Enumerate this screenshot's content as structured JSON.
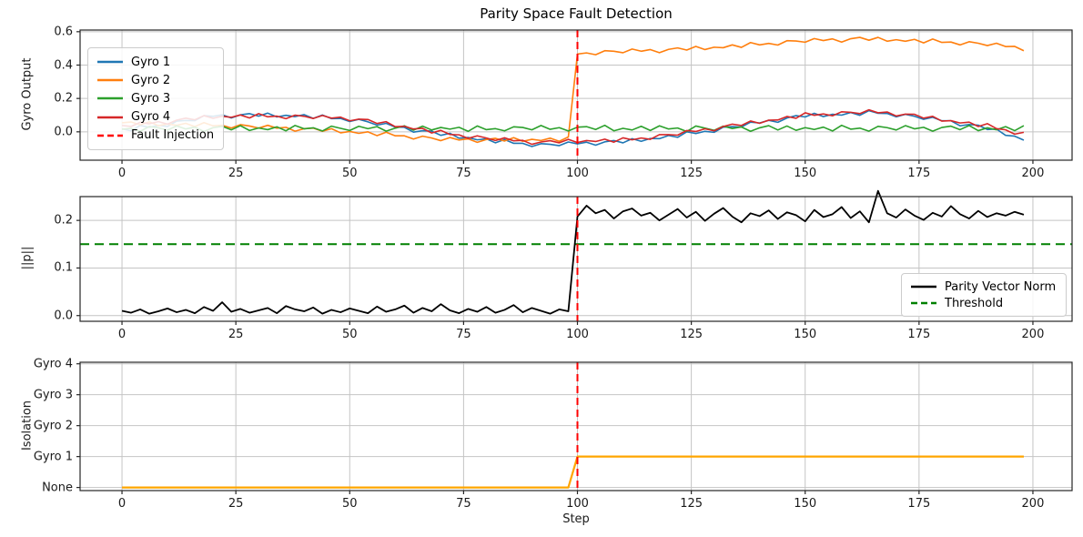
{
  "figure": {
    "title": "Parity Space Fault Detection",
    "background": "#ffffff",
    "grid_color": "#c4c4c4",
    "spine_color": "#262626"
  },
  "chart_data": [
    {
      "type": "line",
      "title": "Parity Space Fault Detection",
      "ylabel": "Gyro Output",
      "xlim": [
        -9.2,
        208.6
      ],
      "ylim": [
        -0.17,
        0.61
      ],
      "xticks": [
        0,
        25,
        50,
        75,
        100,
        125,
        150,
        175,
        200
      ],
      "xticklabels": [
        "0",
        "25",
        "50",
        "75",
        "100",
        "125",
        "150",
        "175",
        "200"
      ],
      "yticks": [
        0.0,
        0.2,
        0.4,
        0.6
      ],
      "yticklabels": [
        "0.0",
        "0.2",
        "0.4",
        "0.6"
      ],
      "grid": true,
      "x": {
        "start": 0,
        "step": 2,
        "count": 100
      },
      "vline": {
        "x": 100,
        "color": "#ff0000",
        "label": "Fault Injection",
        "style": "dashed"
      },
      "legend": {
        "position": "upper-left",
        "entries": [
          {
            "label": "Gyro 1",
            "color": "#1f77b4",
            "dash": false
          },
          {
            "label": "Gyro 2",
            "color": "#ff7f0e",
            "dash": false
          },
          {
            "label": "Gyro 3",
            "color": "#2ca02c",
            "dash": false
          },
          {
            "label": "Gyro 4",
            "color": "#d62728",
            "dash": false
          },
          {
            "label": "Fault Injection",
            "color": "#ff0000",
            "dash": true
          }
        ]
      },
      "series": [
        {
          "name": "Gyro 1",
          "color": "#1f77b4",
          "width": 1.6,
          "values": [
            0.018,
            0.006,
            0.038,
            0.027,
            0.039,
            0.032,
            0.064,
            0.068,
            0.067,
            0.097,
            0.093,
            0.102,
            0.083,
            0.102,
            0.109,
            0.094,
            0.112,
            0.089,
            0.099,
            0.091,
            0.103,
            0.08,
            0.101,
            0.079,
            0.08,
            0.062,
            0.075,
            0.06,
            0.04,
            0.051,
            0.028,
            0.027,
            -0.002,
            0.007,
            0.004,
            -0.021,
            -0.009,
            -0.038,
            -0.034,
            -0.048,
            -0.042,
            -0.066,
            -0.046,
            -0.069,
            -0.069,
            -0.088,
            -0.071,
            -0.075,
            -0.083,
            -0.061,
            -0.072,
            -0.062,
            -0.08,
            -0.06,
            -0.052,
            -0.066,
            -0.041,
            -0.057,
            -0.04,
            -0.041,
            -0.022,
            -0.033,
            0.0,
            -0.01,
            0.003,
            -0.003,
            0.028,
            0.031,
            0.029,
            0.058,
            0.053,
            0.069,
            0.057,
            0.083,
            0.097,
            0.089,
            0.111,
            0.091,
            0.105,
            0.1,
            0.116,
            0.099,
            0.127,
            0.111,
            0.11,
            0.09,
            0.105,
            0.093,
            0.075,
            0.087,
            0.066,
            0.066,
            0.036,
            0.044,
            0.04,
            0.014,
            0.017,
            -0.021,
            -0.026,
            -0.05
          ]
        },
        {
          "name": "Gyro 2",
          "color": "#ff7f0e",
          "width": 1.6,
          "values": [
            0.054,
            0.059,
            0.042,
            0.06,
            0.037,
            0.047,
            0.039,
            0.051,
            0.031,
            0.055,
            0.036,
            0.039,
            0.023,
            0.043,
            0.035,
            0.022,
            0.039,
            0.022,
            0.027,
            0.004,
            0.019,
            0.022,
            0.003,
            0.019,
            -0.006,
            0.002,
            -0.009,
            0.0,
            -0.023,
            -0.002,
            -0.024,
            -0.024,
            -0.043,
            -0.026,
            -0.037,
            -0.053,
            -0.034,
            -0.049,
            -0.042,
            -0.063,
            -0.046,
            -0.039,
            -0.055,
            -0.035,
            -0.057,
            -0.045,
            -0.052,
            -0.038,
            -0.057,
            -0.031,
            0.466,
            0.473,
            0.462,
            0.486,
            0.483,
            0.474,
            0.496,
            0.483,
            0.493,
            0.474,
            0.494,
            0.503,
            0.49,
            0.512,
            0.493,
            0.507,
            0.504,
            0.521,
            0.506,
            0.535,
            0.521,
            0.53,
            0.52,
            0.546,
            0.544,
            0.537,
            0.559,
            0.547,
            0.557,
            0.538,
            0.558,
            0.566,
            0.549,
            0.566,
            0.543,
            0.552,
            0.543,
            0.554,
            0.533,
            0.556,
            0.536,
            0.538,
            0.521,
            0.54,
            0.531,
            0.517,
            0.531,
            0.511,
            0.512,
            0.486
          ]
        },
        {
          "name": "Gyro 3",
          "color": "#2ca02c",
          "width": 1.6,
          "values": [
            0.015,
            0.021,
            0.003,
            0.032,
            0.024,
            0.01,
            0.036,
            0.017,
            0.028,
            0.002,
            0.025,
            0.033,
            0.012,
            0.037,
            0.008,
            0.023,
            0.013,
            0.03,
            0.006,
            0.038,
            0.018,
            0.024,
            0.005,
            0.034,
            0.021,
            0.008,
            0.033,
            0.019,
            0.031,
            0.004,
            0.022,
            0.036,
            0.01,
            0.034,
            0.011,
            0.026,
            0.016,
            0.027,
            0.003,
            0.035,
            0.013,
            0.019,
            0.006,
            0.03,
            0.026,
            0.012,
            0.038,
            0.015,
            0.025,
            0.005,
            0.028,
            0.031,
            0.014,
            0.039,
            0.006,
            0.021,
            0.011,
            0.033,
            0.008,
            0.036,
            0.017,
            0.023,
            0.002,
            0.035,
            0.022,
            0.009,
            0.034,
            0.02,
            0.029,
            0.003,
            0.024,
            0.037,
            0.011,
            0.035,
            0.009,
            0.025,
            0.014,
            0.028,
            0.005,
            0.039,
            0.016,
            0.022,
            0.004,
            0.033,
            0.025,
            0.011,
            0.037,
            0.018,
            0.027,
            0.004,
            0.026,
            0.034,
            0.013,
            0.038,
            0.007,
            0.024,
            0.012,
            0.031,
            0.007,
            0.037
          ]
        },
        {
          "name": "Gyro 4",
          "color": "#d62728",
          "width": 1.6,
          "values": [
            0.038,
            0.032,
            0.057,
            0.048,
            0.061,
            0.046,
            0.07,
            0.082,
            0.072,
            0.097,
            0.081,
            0.093,
            0.087,
            0.101,
            0.083,
            0.109,
            0.09,
            0.094,
            0.079,
            0.1,
            0.093,
            0.08,
            0.098,
            0.082,
            0.088,
            0.066,
            0.076,
            0.074,
            0.05,
            0.061,
            0.031,
            0.033,
            0.017,
            0.021,
            -0.007,
            0.009,
            -0.016,
            -0.018,
            -0.039,
            -0.024,
            -0.037,
            -0.052,
            -0.036,
            -0.054,
            -0.051,
            -0.075,
            -0.061,
            -0.053,
            -0.066,
            -0.045,
            -0.064,
            -0.052,
            -0.058,
            -0.044,
            -0.062,
            -0.036,
            -0.048,
            -0.037,
            -0.045,
            -0.017,
            -0.017,
            -0.02,
            0.008,
            0.002,
            0.018,
            0.006,
            0.032,
            0.046,
            0.038,
            0.065,
            0.051,
            0.07,
            0.071,
            0.092,
            0.081,
            0.114,
            0.099,
            0.107,
            0.096,
            0.12,
            0.117,
            0.109,
            0.132,
            0.114,
            0.119,
            0.095,
            0.106,
            0.105,
            0.082,
            0.093,
            0.064,
            0.067,
            0.053,
            0.058,
            0.032,
            0.049,
            0.019,
            0.012,
            -0.014,
            -0.003
          ]
        }
      ]
    },
    {
      "type": "line",
      "ylabel": "||p||",
      "xlim": [
        -9.2,
        208.6
      ],
      "ylim": [
        -0.012,
        0.25
      ],
      "xticks": [
        0,
        25,
        50,
        75,
        100,
        125,
        150,
        175,
        200
      ],
      "xticklabels": [
        "0",
        "25",
        "50",
        "75",
        "100",
        "125",
        "150",
        "175",
        "200"
      ],
      "yticks": [
        0.0,
        0.1,
        0.2
      ],
      "yticklabels": [
        "0.0",
        "0.1",
        "0.2"
      ],
      "grid": true,
      "x": {
        "start": 0,
        "step": 2,
        "count": 100
      },
      "vline": {
        "x": 100,
        "color": "#ff0000",
        "style": "dashed"
      },
      "hline": {
        "y": 0.15,
        "color": "#008000",
        "label": "Threshold",
        "style": "dashed"
      },
      "legend": {
        "position": "lower-right",
        "entries": [
          {
            "label": "Parity Vector Norm",
            "color": "#000000",
            "dash": false
          },
          {
            "label": "Threshold",
            "color": "#008000",
            "dash": true
          }
        ]
      },
      "series": [
        {
          "name": "Parity Vector Norm",
          "color": "#000000",
          "width": 1.8,
          "values": [
            0.01,
            0.006,
            0.013,
            0.004,
            0.009,
            0.015,
            0.007,
            0.012,
            0.005,
            0.018,
            0.01,
            0.028,
            0.008,
            0.014,
            0.006,
            0.011,
            0.016,
            0.005,
            0.02,
            0.013,
            0.009,
            0.017,
            0.004,
            0.012,
            0.007,
            0.015,
            0.01,
            0.005,
            0.019,
            0.008,
            0.013,
            0.021,
            0.006,
            0.016,
            0.009,
            0.024,
            0.011,
            0.005,
            0.014,
            0.008,
            0.018,
            0.006,
            0.012,
            0.022,
            0.007,
            0.016,
            0.01,
            0.004,
            0.013,
            0.009,
            0.208,
            0.231,
            0.215,
            0.222,
            0.204,
            0.219,
            0.225,
            0.21,
            0.216,
            0.2,
            0.212,
            0.224,
            0.206,
            0.218,
            0.199,
            0.214,
            0.226,
            0.208,
            0.196,
            0.215,
            0.209,
            0.221,
            0.203,
            0.217,
            0.211,
            0.198,
            0.222,
            0.207,
            0.213,
            0.228,
            0.205,
            0.219,
            0.196,
            0.262,
            0.215,
            0.206,
            0.223,
            0.21,
            0.201,
            0.216,
            0.208,
            0.23,
            0.213,
            0.204,
            0.22,
            0.207,
            0.215,
            0.21,
            0.218,
            0.212
          ]
        }
      ]
    },
    {
      "type": "line",
      "ylabel": "Isolation",
      "xlabel": "Step",
      "xlim": [
        -9.2,
        208.6
      ],
      "ylim": [
        -0.1,
        4.05
      ],
      "xticks": [
        0,
        25,
        50,
        75,
        100,
        125,
        150,
        175,
        200
      ],
      "xticklabels": [
        "0",
        "25",
        "50",
        "75",
        "100",
        "125",
        "150",
        "175",
        "200"
      ],
      "yticks": [
        0,
        1,
        2,
        3,
        4
      ],
      "yticklabels": [
        "None",
        "Gyro 1",
        "Gyro 2",
        "Gyro 3",
        "Gyro 4"
      ],
      "grid": true,
      "x": {
        "start": 0,
        "step": 2,
        "count": 100
      },
      "vline": {
        "x": 100,
        "color": "#ff0000",
        "style": "dashed"
      },
      "series": [
        {
          "name": "Isolation",
          "color": "#ffa500",
          "width": 2.2,
          "values": [
            0,
            0,
            0,
            0,
            0,
            0,
            0,
            0,
            0,
            0,
            0,
            0,
            0,
            0,
            0,
            0,
            0,
            0,
            0,
            0,
            0,
            0,
            0,
            0,
            0,
            0,
            0,
            0,
            0,
            0,
            0,
            0,
            0,
            0,
            0,
            0,
            0,
            0,
            0,
            0,
            0,
            0,
            0,
            0,
            0,
            0,
            0,
            0,
            0,
            0,
            1,
            1,
            1,
            1,
            1,
            1,
            1,
            1,
            1,
            1,
            1,
            1,
            1,
            1,
            1,
            1,
            1,
            1,
            1,
            1,
            1,
            1,
            1,
            1,
            1,
            1,
            1,
            1,
            1,
            1,
            1,
            1,
            1,
            1,
            1,
            1,
            1,
            1,
            1,
            1,
            1,
            1,
            1,
            1,
            1,
            1,
            1,
            1,
            1,
            1
          ]
        }
      ]
    }
  ]
}
